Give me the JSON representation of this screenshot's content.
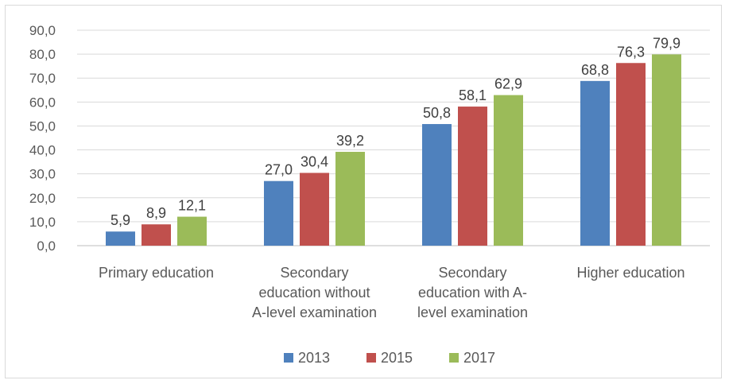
{
  "chart_data": {
    "type": "bar",
    "categories": [
      "Primary education",
      "Secondary education without A-level examination",
      "Secondary education with  A-level examination",
      "Higher education"
    ],
    "category_label_lines": [
      [
        "Primary education"
      ],
      [
        "Secondary",
        "education without",
        "A-level examination"
      ],
      [
        "Secondary",
        "education with  A-",
        "level examination"
      ],
      [
        "Higher education"
      ]
    ],
    "series": [
      {
        "name": "2013",
        "color": "#4f81bd",
        "values": [
          5.9,
          27.0,
          50.8,
          68.8
        ],
        "labels": [
          "5,9",
          "27,0",
          "50,8",
          "68,8"
        ]
      },
      {
        "name": "2015",
        "color": "#c0504d",
        "values": [
          8.9,
          30.4,
          58.1,
          76.3
        ],
        "labels": [
          "8,9",
          "30,4",
          "58,1",
          "76,3"
        ]
      },
      {
        "name": "2017",
        "color": "#9bbb59",
        "values": [
          12.1,
          39.2,
          62.9,
          79.9
        ],
        "labels": [
          "12,1",
          "39,2",
          "62,9",
          "79,9"
        ]
      }
    ],
    "yticks": [
      0,
      10,
      20,
      30,
      40,
      50,
      60,
      70,
      80,
      90
    ],
    "ytick_labels": [
      "0,0",
      "10,0",
      "20,0",
      "30,0",
      "40,0",
      "50,0",
      "60,0",
      "70,0",
      "80,0",
      "90,0"
    ],
    "ylim": [
      0,
      90
    ],
    "grid": true,
    "legend": "bottom",
    "title": "",
    "xlabel": "",
    "ylabel": ""
  }
}
